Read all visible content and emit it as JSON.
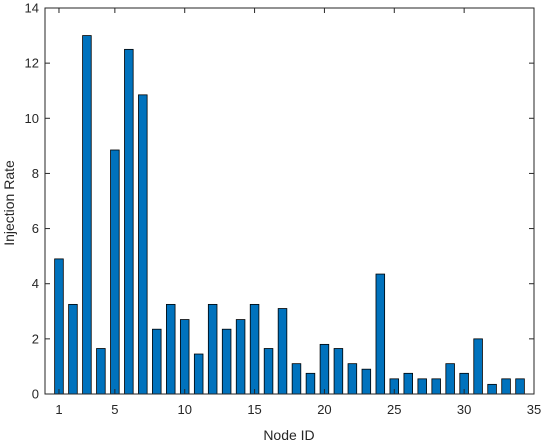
{
  "chart_data": {
    "type": "bar",
    "xlabel": "Node ID",
    "ylabel": "Injection Rate",
    "xlim": [
      0,
      35
    ],
    "ylim": [
      0,
      14
    ],
    "xticks": [
      1,
      5,
      10,
      15,
      20,
      25,
      30,
      35
    ],
    "yticks": [
      0,
      2,
      4,
      6,
      8,
      10,
      12,
      14
    ],
    "grid": false,
    "bar_color": "#0072BD",
    "categories": [
      1,
      2,
      3,
      4,
      5,
      6,
      7,
      8,
      9,
      10,
      11,
      12,
      13,
      14,
      15,
      16,
      17,
      18,
      19,
      20,
      21,
      22,
      23,
      24,
      25,
      26,
      27,
      28,
      29,
      30,
      31,
      32,
      33,
      34
    ],
    "values": [
      4.9,
      3.25,
      13.0,
      1.65,
      8.85,
      12.5,
      10.85,
      2.35,
      3.25,
      2.7,
      1.45,
      3.25,
      2.35,
      2.7,
      3.25,
      1.65,
      3.1,
      1.1,
      0.75,
      1.8,
      1.65,
      1.1,
      0.9,
      4.35,
      0.55,
      0.75,
      0.55,
      0.55,
      1.1,
      0.75,
      2.0,
      0.35,
      0.55,
      0.55
    ]
  }
}
